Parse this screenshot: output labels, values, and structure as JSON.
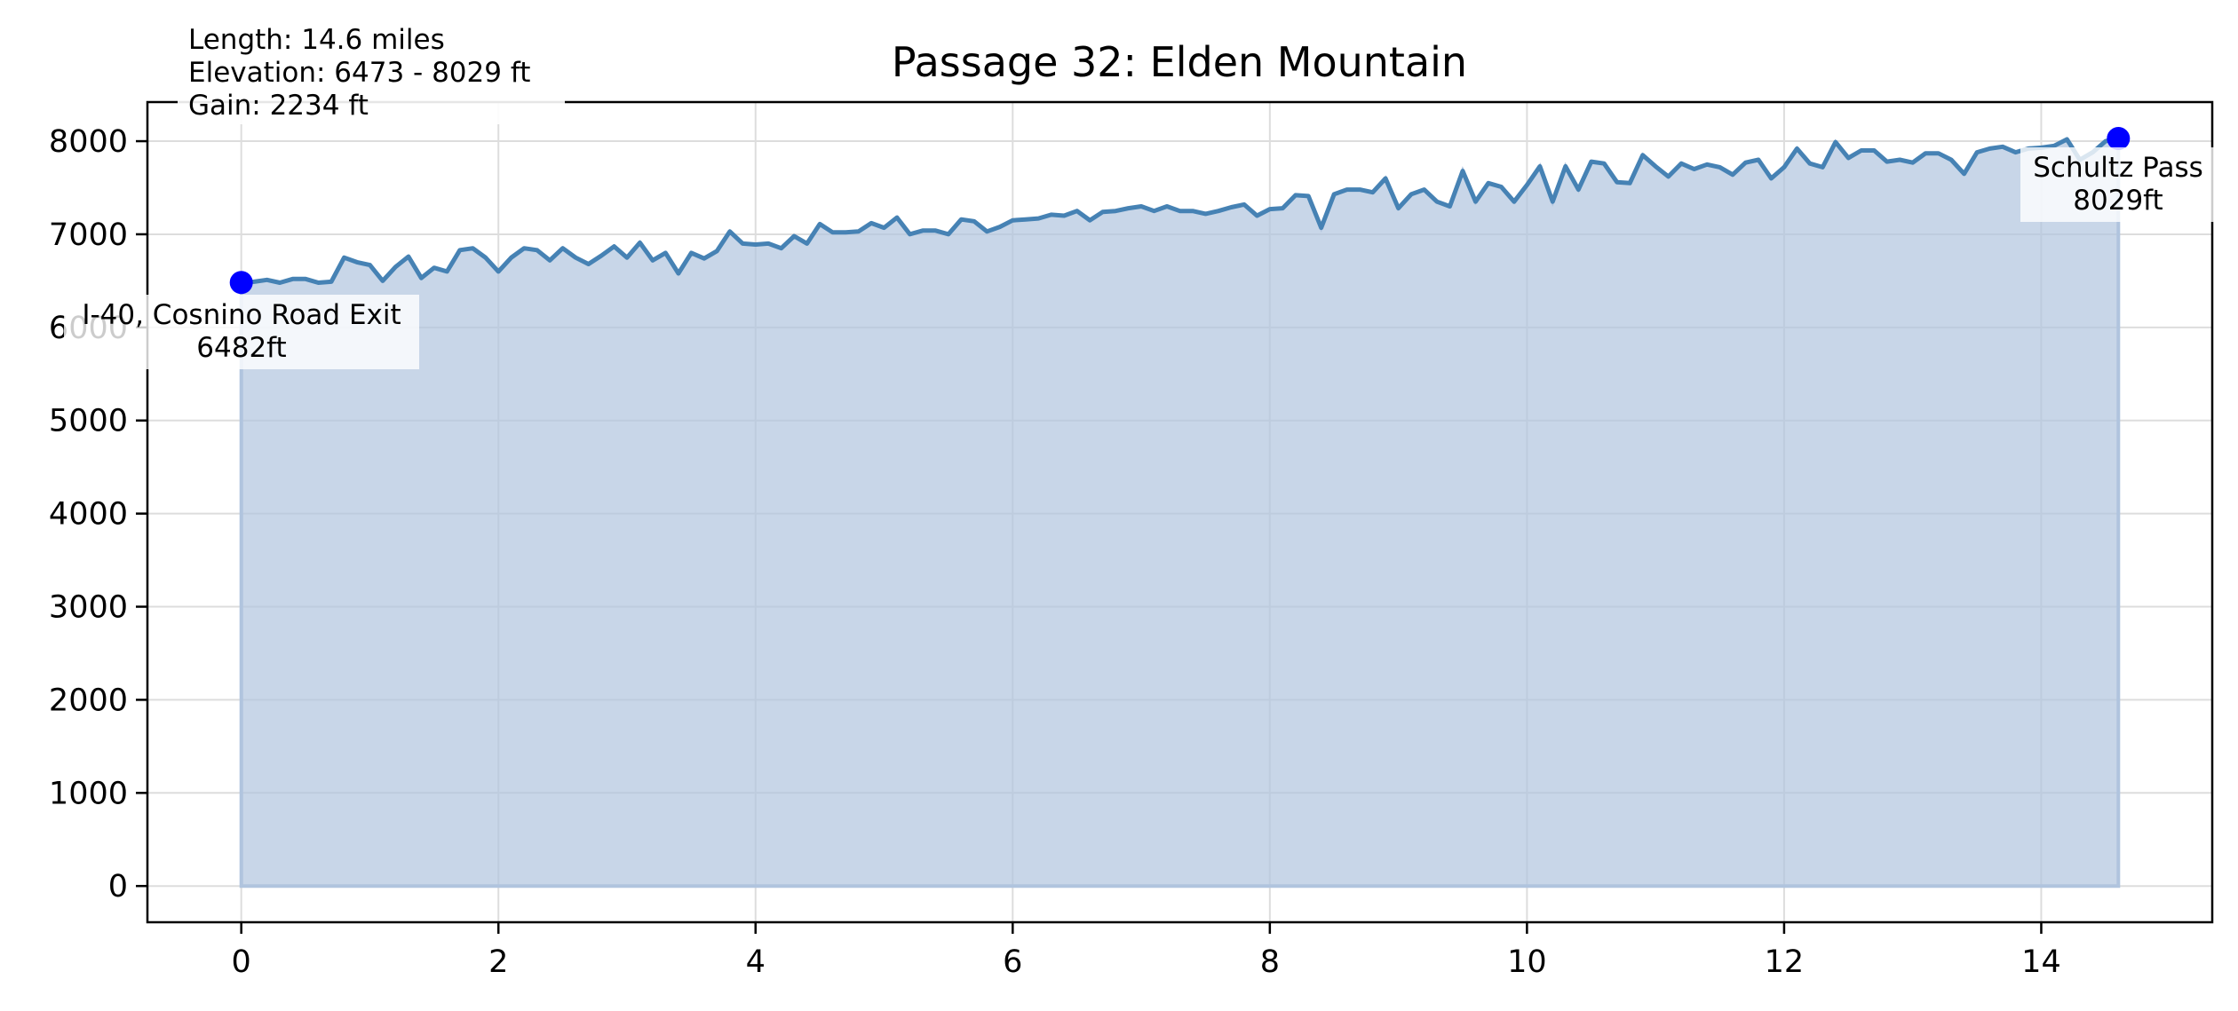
{
  "chart_data": {
    "type": "area",
    "title": "Passage 32: Elden Mountain",
    "xlabel": "",
    "ylabel": "",
    "xlim": [
      -0.73,
      15.33
    ],
    "ylim": [
      -389,
      8420
    ],
    "x_ticks": [
      0,
      2,
      4,
      6,
      8,
      10,
      12,
      14
    ],
    "y_ticks": [
      0,
      1000,
      2000,
      3000,
      4000,
      5000,
      6000,
      7000,
      8000
    ],
    "grid": true,
    "colors": {
      "line": "#4682b4",
      "fill": "#b0c4de",
      "marker": "#0000ff"
    },
    "info_box": {
      "lines": [
        "Length: 14.6 miles",
        "Elevation: 6473 - 8029 ft",
        "Gain: 2234 ft"
      ]
    },
    "endpoints": [
      {
        "name": "I-40, Cosnino Road Exit",
        "label": "6482ft",
        "x": 0,
        "y": 6482
      },
      {
        "name": "Schultz Pass",
        "label": "8029ft",
        "x": 14.6,
        "y": 8029
      }
    ],
    "series": [
      {
        "x": [
          0.0,
          0.1,
          0.2,
          0.3,
          0.4,
          0.5,
          0.6,
          0.7,
          0.8,
          0.9,
          1.0,
          1.1,
          1.2,
          1.3,
          1.4,
          1.5,
          1.6,
          1.7,
          1.8,
          1.9,
          2.0,
          2.1,
          2.2,
          2.3,
          2.4,
          2.5,
          2.6,
          2.7,
          2.8,
          2.9,
          3.0,
          3.1,
          3.2,
          3.3,
          3.4,
          3.5,
          3.6,
          3.7,
          3.8,
          3.9,
          4.0,
          4.1,
          4.2,
          4.3,
          4.4,
          4.5,
          4.6,
          4.7,
          4.8,
          4.9,
          5.0,
          5.1,
          5.2,
          5.3,
          5.4,
          5.5,
          5.6,
          5.7,
          5.8,
          5.9,
          6.0,
          6.1,
          6.2,
          6.3,
          6.4,
          6.5,
          6.6,
          6.7,
          6.8,
          6.9,
          7.0,
          7.1,
          7.2,
          7.3,
          7.4,
          7.5,
          7.6,
          7.7,
          7.8,
          7.9,
          8.0,
          8.1,
          8.2,
          8.3,
          8.4,
          8.5,
          8.6,
          8.7,
          8.8,
          8.9,
          9.0,
          9.1,
          9.2,
          9.3,
          9.4,
          9.5,
          9.6,
          9.7,
          9.8,
          9.9,
          10.0,
          10.1,
          10.2,
          10.3,
          10.4,
          10.5,
          10.6,
          10.7,
          10.8,
          10.9,
          11.0,
          11.1,
          11.2,
          11.3,
          11.4,
          11.5,
          11.6,
          11.7,
          11.8,
          11.9,
          12.0,
          12.1,
          12.2,
          12.3,
          12.4,
          12.5,
          12.6,
          12.7,
          12.8,
          12.9,
          13.0,
          13.1,
          13.2,
          13.3,
          13.4,
          13.5,
          13.6,
          13.7,
          13.8,
          13.9,
          14.0,
          14.1,
          14.2,
          14.3,
          14.4,
          14.5,
          14.6
        ],
        "y": [
          6482,
          6490,
          6510,
          6480,
          6520,
          6520,
          6480,
          6490,
          6750,
          6700,
          6670,
          6500,
          6650,
          6760,
          6530,
          6640,
          6600,
          6830,
          6850,
          6750,
          6600,
          6750,
          6850,
          6830,
          6720,
          6850,
          6750,
          6680,
          6770,
          6870,
          6750,
          6910,
          6720,
          6800,
          6580,
          6800,
          6740,
          6820,
          7030,
          6900,
          6890,
          6900,
          6850,
          6980,
          6900,
          7110,
          7020,
          7020,
          7030,
          7120,
          7070,
          7180,
          7000,
          7040,
          7040,
          7000,
          7160,
          7140,
          7030,
          7080,
          7150,
          7160,
          7170,
          7210,
          7200,
          7250,
          7150,
          7240,
          7250,
          7280,
          7300,
          7250,
          7300,
          7250,
          7250,
          7220,
          7250,
          7290,
          7320,
          7200,
          7270,
          7280,
          7420,
          7410,
          7070,
          7430,
          7480,
          7480,
          7450,
          7600,
          7280,
          7430,
          7480,
          7350,
          7300,
          7680,
          7350,
          7550,
          7510,
          7350,
          7530,
          7730,
          7350,
          7730,
          7480,
          7780,
          7760,
          7560,
          7550,
          7850,
          7730,
          7620,
          7760,
          7700,
          7750,
          7720,
          7640,
          7770,
          7800,
          7600,
          7720,
          7920,
          7760,
          7720,
          7990,
          7820,
          7900,
          7900,
          7780,
          7800,
          7770,
          7870,
          7870,
          7800,
          7650,
          7880,
          7920,
          7940,
          7880,
          7920,
          7930,
          7950,
          8020,
          7800,
          7880,
          8000,
          8029
        ]
      }
    ]
  }
}
